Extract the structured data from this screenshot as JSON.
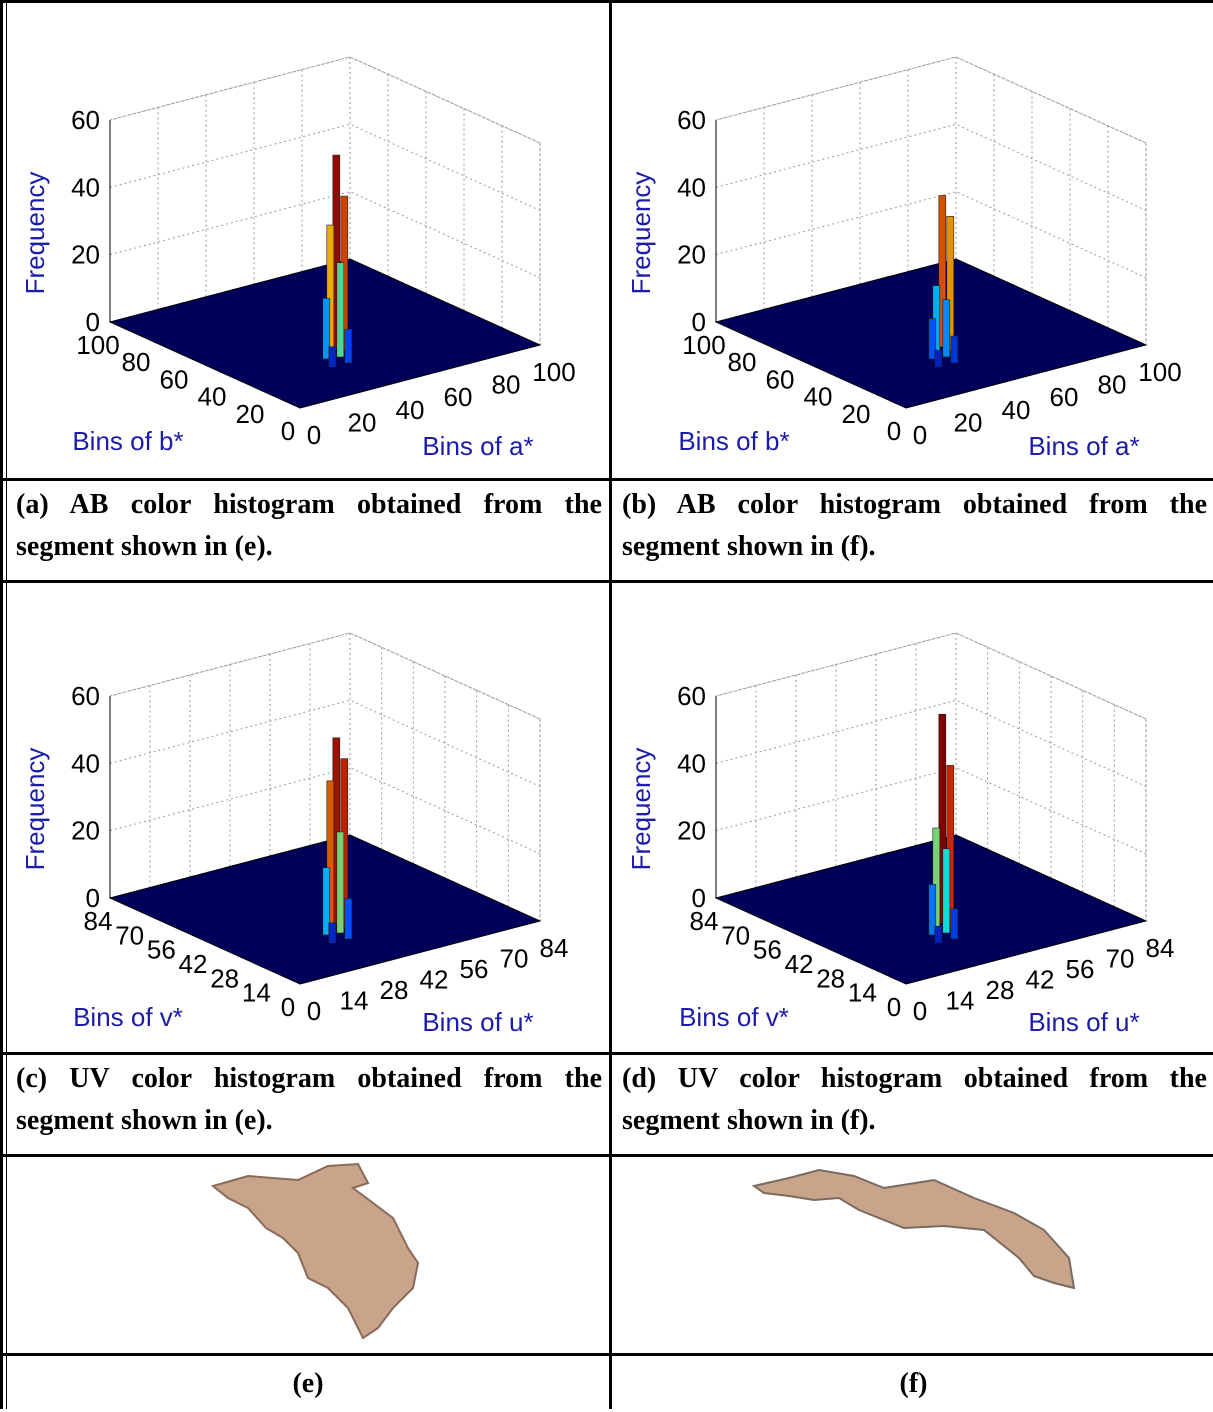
{
  "panels": [
    {
      "z_label": "Frequency",
      "zlim": [
        0,
        60
      ],
      "zticks": [
        0,
        20,
        40,
        60
      ],
      "x_label": "Bins of a*",
      "xlim": [
        0,
        100
      ],
      "xticks": [
        0,
        20,
        40,
        60,
        80,
        100
      ],
      "y_label": "Bins of b*",
      "ylim": [
        0,
        100
      ],
      "yticks": [
        0,
        20,
        40,
        60,
        80,
        100
      ],
      "peak_values": [
        57,
        46,
        38,
        28,
        18,
        10,
        6
      ],
      "caption": "(a) AB color histogram obtained from the segment shown in (e)."
    },
    {
      "z_label": "Frequency",
      "zlim": [
        0,
        60
      ],
      "zticks": [
        0,
        20,
        40,
        60
      ],
      "x_label": "Bins of a*",
      "xlim": [
        0,
        100
      ],
      "xticks": [
        0,
        20,
        40,
        60,
        80,
        100
      ],
      "y_label": "Bins of b*",
      "ylim": [
        0,
        100
      ],
      "yticks": [
        0,
        20,
        40,
        60,
        80,
        100
      ],
      "peak_values": [
        45,
        40,
        20,
        17,
        12,
        8,
        5
      ],
      "caption": "(b) AB color histogram obtained from the segment shown in (f)."
    },
    {
      "z_label": "Frequency",
      "zlim": [
        0,
        60
      ],
      "zticks": [
        0,
        20,
        40,
        60
      ],
      "x_label": "Bins of u*",
      "xlim": [
        0,
        84
      ],
      "xticks": [
        0,
        14,
        28,
        42,
        56,
        70,
        84
      ],
      "y_label": "Bins of v*",
      "ylim": [
        0,
        84
      ],
      "yticks": [
        0,
        14,
        28,
        42,
        56,
        70,
        84
      ],
      "peak_values": [
        55,
        50,
        44,
        30,
        20,
        12,
        6
      ],
      "caption": "(c) UV color histogram obtained from the segment shown in (e)."
    },
    {
      "z_label": "Frequency",
      "zlim": [
        0,
        60
      ],
      "zticks": [
        0,
        20,
        40,
        60
      ],
      "x_label": "Bins of u*",
      "xlim": [
        0,
        84
      ],
      "xticks": [
        0,
        14,
        28,
        42,
        56,
        70,
        84
      ],
      "y_label": "Bins of v*",
      "ylim": [
        0,
        84
      ],
      "yticks": [
        0,
        14,
        28,
        42,
        56,
        70,
        84
      ],
      "peak_values": [
        62,
        48,
        30,
        25,
        15,
        9,
        5
      ],
      "caption": "(d) UV color histogram obtained from the segment shown in (f)."
    }
  ],
  "images": [
    {
      "label": "(e)"
    },
    {
      "label": "(f)"
    }
  ]
}
